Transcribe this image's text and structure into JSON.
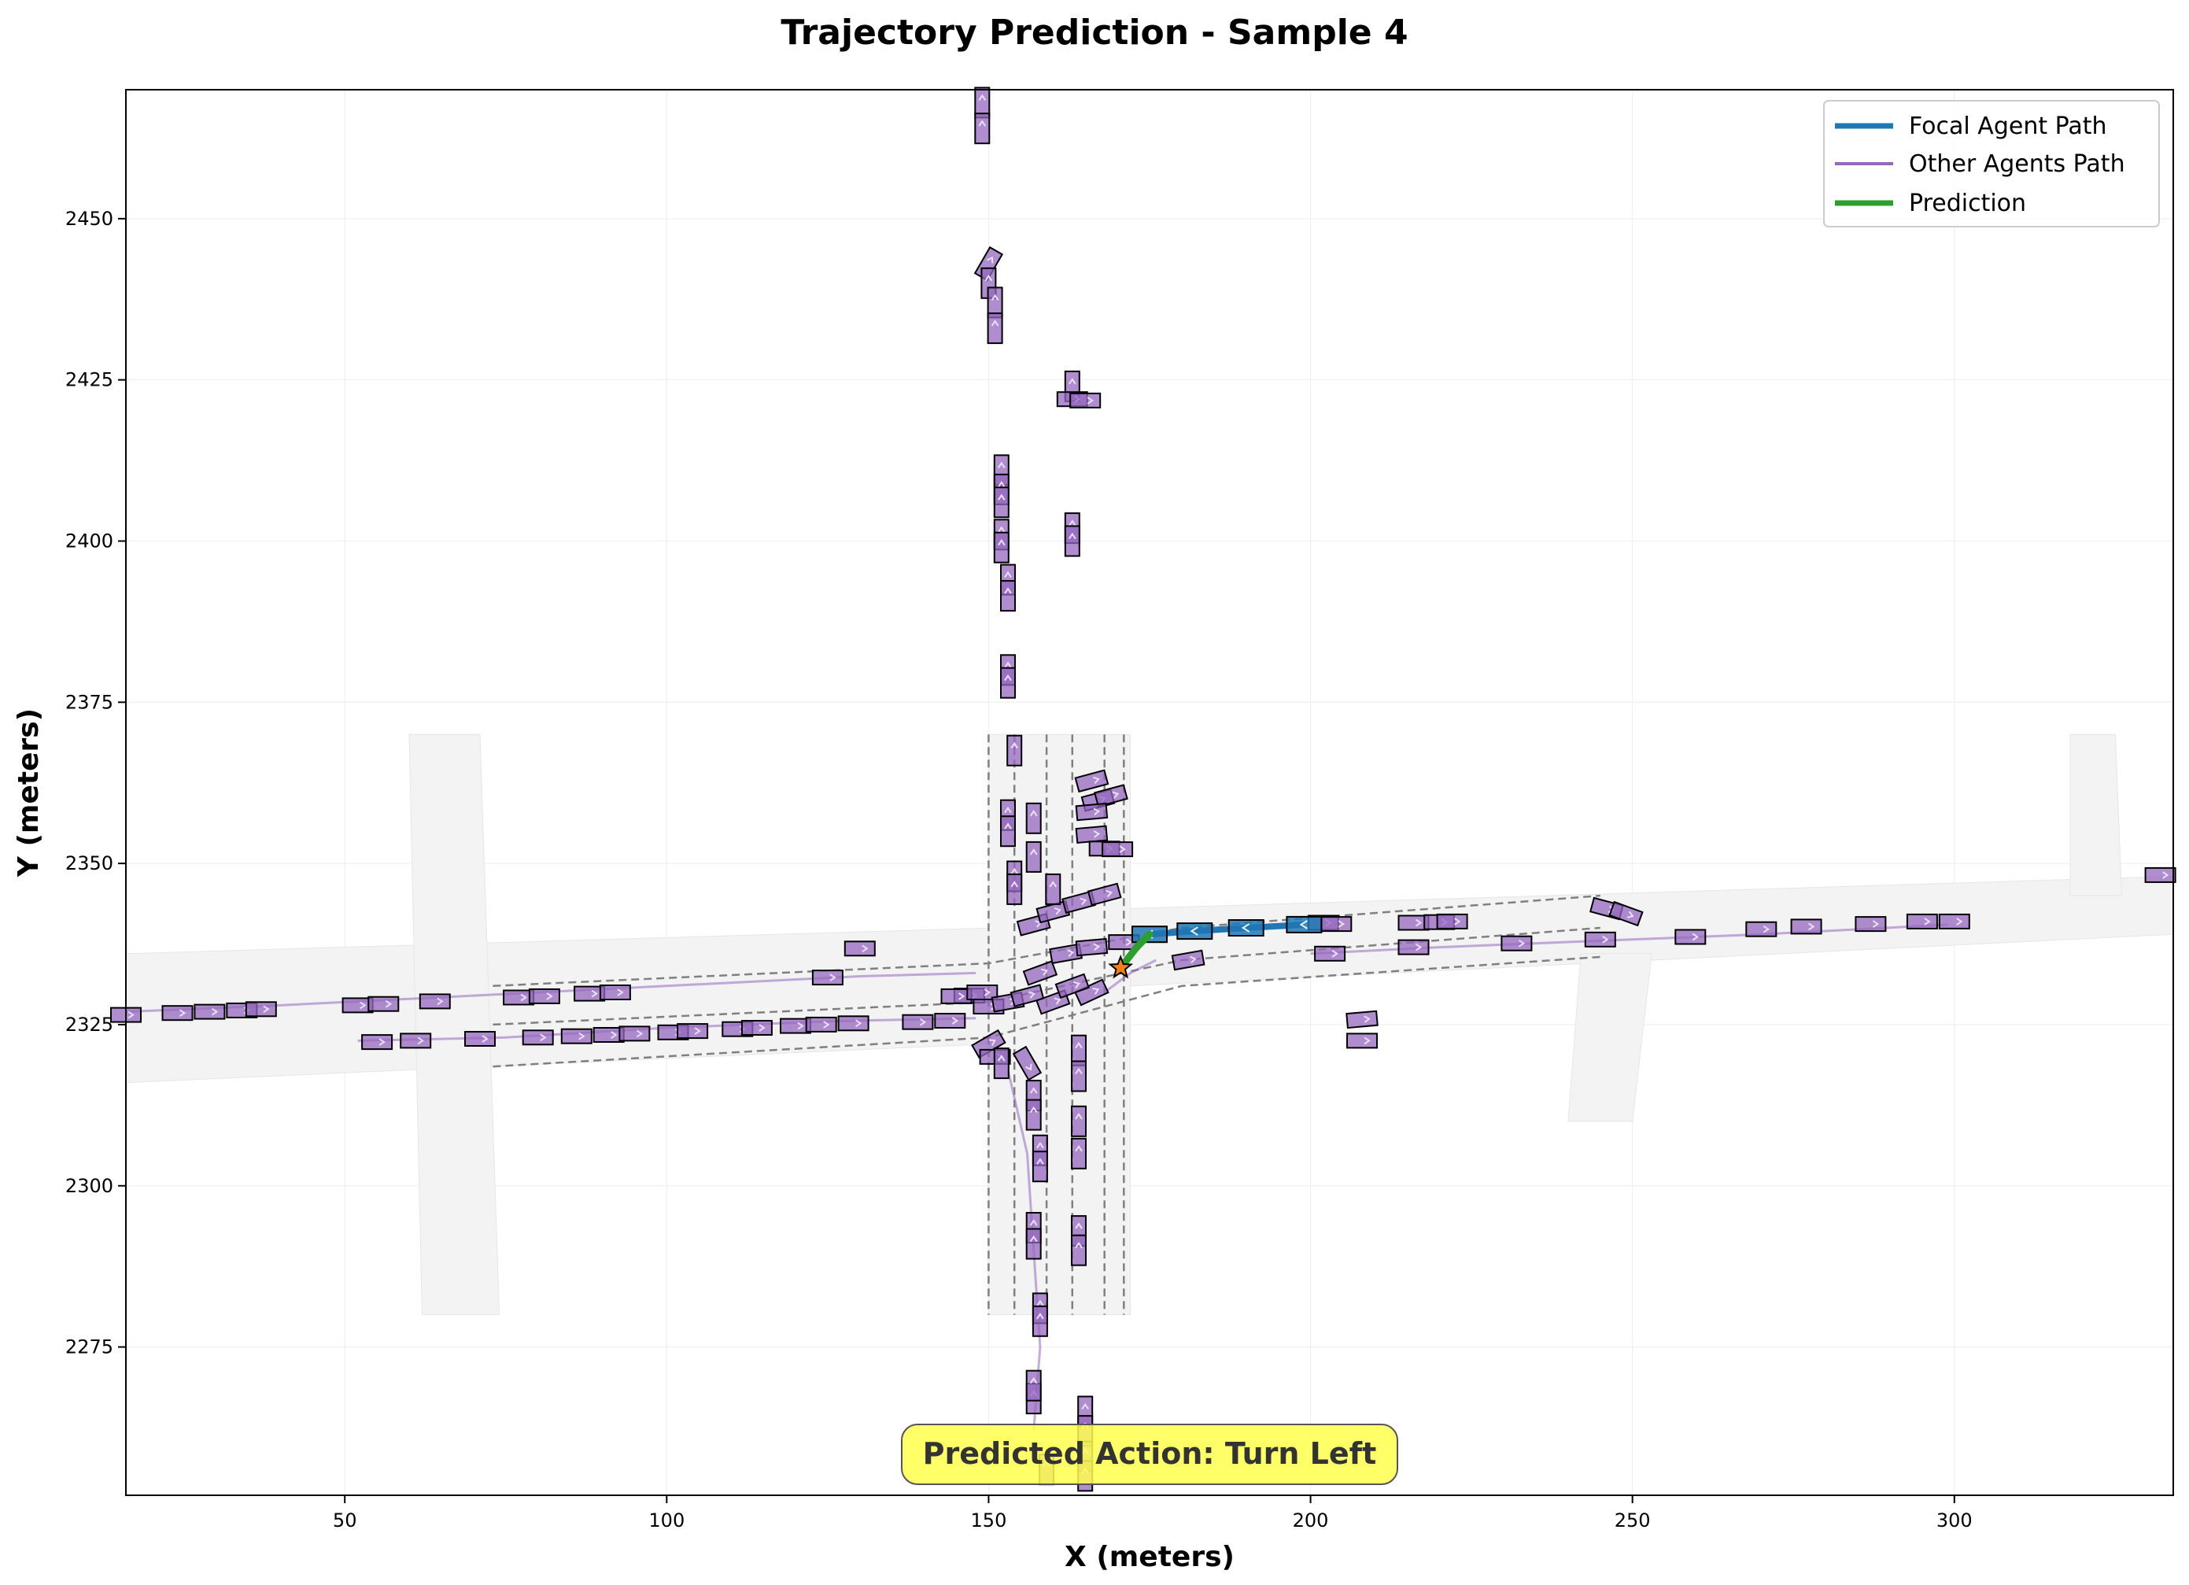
{
  "chart_data": {
    "type": "scatter",
    "title": "Trajectory Prediction - Sample 4",
    "xlabel": "X (meters)",
    "ylabel": "Y (meters)",
    "xlim": [
      16,
      334
    ],
    "ylim": [
      2252,
      2470
    ],
    "xticks": [
      50,
      100,
      150,
      200,
      250,
      300
    ],
    "yticks": [
      2275,
      2300,
      2325,
      2350,
      2375,
      2400,
      2425,
      2450
    ],
    "grid": true,
    "legend_position": "top-right",
    "legend": [
      {
        "label": "Focal Agent Path",
        "color": "#1f77b4"
      },
      {
        "label": "Other Agents Path",
        "color": "#9467bd"
      },
      {
        "label": "Prediction",
        "color": "#2ca02c"
      }
    ],
    "annotation": "Predicted Action: Turn Left",
    "focal_agent": {
      "path": [
        [
          199,
          2340.5
        ],
        [
          190,
          2340
        ],
        [
          182,
          2339.5
        ],
        [
          175,
          2339
        ]
      ],
      "current_position": [
        170.5,
        2333.8
      ]
    },
    "prediction": {
      "path": [
        [
          170.5,
          2333.8
        ],
        [
          173,
          2337
        ],
        [
          175,
          2339
        ]
      ]
    },
    "other_agent_paths": [
      [
        [
          16,
          2327
        ],
        [
          40,
          2328
        ],
        [
          60,
          2329
        ],
        [
          80,
          2330
        ],
        [
          100,
          2331
        ],
        [
          130,
          2332.5
        ],
        [
          148,
          2333
        ]
      ],
      [
        [
          52,
          2322.5
        ],
        [
          75,
          2323
        ],
        [
          100,
          2324.5
        ],
        [
          125,
          2325.5
        ],
        [
          148,
          2326
        ]
      ],
      [
        [
          200,
          2336
        ],
        [
          220,
          2337
        ],
        [
          245,
          2338
        ],
        [
          270,
          2339
        ],
        [
          299,
          2340.5
        ]
      ],
      [
        [
          157,
          2262
        ],
        [
          158,
          2275
        ],
        [
          157,
          2290
        ],
        [
          156,
          2305
        ],
        [
          153,
          2318
        ]
      ],
      [
        [
          168,
          2330
        ],
        [
          172,
          2333
        ],
        [
          176,
          2335
        ]
      ]
    ],
    "other_agents": [
      [
        16,
        2326.5,
        0
      ],
      [
        24,
        2326.8,
        0
      ],
      [
        29,
        2327,
        0
      ],
      [
        34,
        2327.2,
        0
      ],
      [
        37,
        2327.4,
        0
      ],
      [
        52,
        2328,
        0
      ],
      [
        56,
        2328.2,
        0
      ],
      [
        64,
        2328.6,
        0
      ],
      [
        77,
        2329.2,
        0
      ],
      [
        81,
        2329.4,
        0
      ],
      [
        88,
        2329.8,
        0
      ],
      [
        92,
        2330,
        0
      ],
      [
        125,
        2332.3,
        0
      ],
      [
        130,
        2336.8,
        0
      ],
      [
        55,
        2322.3,
        0
      ],
      [
        61,
        2322.5,
        0
      ],
      [
        71,
        2322.8,
        0
      ],
      [
        80,
        2323,
        0
      ],
      [
        86,
        2323.2,
        0
      ],
      [
        91,
        2323.4,
        0
      ],
      [
        95,
        2323.6,
        0
      ],
      [
        101,
        2323.8,
        0
      ],
      [
        104,
        2324,
        0
      ],
      [
        111,
        2324.3,
        0
      ],
      [
        114,
        2324.5,
        0
      ],
      [
        120,
        2324.8,
        0
      ],
      [
        124,
        2325,
        0
      ],
      [
        129,
        2325.2,
        0
      ],
      [
        139,
        2325.4,
        0
      ],
      [
        144,
        2325.6,
        0
      ],
      [
        147,
        2329.5,
        0
      ],
      [
        145,
        2329.4,
        0
      ],
      [
        149,
        2330,
        0
      ],
      [
        150,
        2327.8,
        0
      ],
      [
        153,
        2328.5,
        10
      ],
      [
        156,
        2329.5,
        15
      ],
      [
        157,
        2340.5,
        15
      ],
      [
        160,
        2342.5,
        15
      ],
      [
        164,
        2344,
        15
      ],
      [
        168,
        2345.2,
        15
      ],
      [
        158,
        2333,
        20
      ],
      [
        162,
        2336,
        10
      ],
      [
        166,
        2337,
        5
      ],
      [
        171,
        2337.8,
        0
      ],
      [
        166,
        2330,
        25
      ],
      [
        160,
        2328.5,
        20
      ],
      [
        163,
        2331,
        20
      ],
      [
        181,
        2335,
        10
      ],
      [
        208,
        2325.8,
        5
      ],
      [
        208,
        2322.5,
        0
      ],
      [
        202,
        2340.8,
        0
      ],
      [
        204,
        2340.6,
        0
      ],
      [
        216,
        2340.8,
        0
      ],
      [
        220,
        2340.9,
        0
      ],
      [
        222,
        2341,
        0
      ],
      [
        246,
        2343,
        -15
      ],
      [
        249,
        2342.2,
        -20
      ],
      [
        203,
        2336,
        0
      ],
      [
        216,
        2337,
        0
      ],
      [
        232,
        2337.6,
        0
      ],
      [
        245,
        2338.2,
        0
      ],
      [
        259,
        2338.6,
        0
      ],
      [
        270,
        2339.8,
        0
      ],
      [
        277,
        2340.2,
        0
      ],
      [
        287,
        2340.6,
        0
      ],
      [
        295,
        2341,
        0
      ],
      [
        300,
        2341,
        0
      ],
      [
        332,
        2348.2,
        0
      ],
      [
        149,
        2468,
        90
      ],
      [
        149,
        2464,
        90
      ],
      [
        150,
        2443,
        60
      ],
      [
        150,
        2440,
        90
      ],
      [
        151,
        2437,
        90
      ],
      [
        151,
        2433,
        90
      ],
      [
        163,
        2424,
        90
      ],
      [
        163,
        2422,
        0
      ],
      [
        165,
        2421.8,
        0
      ],
      [
        152,
        2411,
        90
      ],
      [
        152,
        2408,
        90
      ],
      [
        152,
        2406,
        90
      ],
      [
        152,
        2401,
        90
      ],
      [
        152,
        2399,
        90
      ],
      [
        163,
        2402,
        90
      ],
      [
        163,
        2400,
        90
      ],
      [
        153,
        2394,
        90
      ],
      [
        153,
        2391.5,
        90
      ],
      [
        153,
        2380,
        90
      ],
      [
        153,
        2378,
        90
      ],
      [
        154,
        2367.5,
        90
      ],
      [
        153,
        2357.5,
        90
      ],
      [
        153,
        2355,
        90
      ],
      [
        157,
        2357,
        90
      ],
      [
        157,
        2351,
        90
      ],
      [
        154,
        2348,
        90
      ],
      [
        154,
        2346,
        90
      ],
      [
        160,
        2346,
        90
      ],
      [
        166,
        2362.8,
        15
      ],
      [
        167,
        2359.8,
        15
      ],
      [
        169,
        2360.5,
        15
      ],
      [
        166,
        2358,
        5
      ],
      [
        166,
        2354.5,
        5
      ],
      [
        168,
        2352.3,
        0
      ],
      [
        170,
        2352.2,
        0
      ],
      [
        150,
        2322,
        30
      ],
      [
        151,
        2320,
        0
      ],
      [
        152,
        2319,
        90
      ],
      [
        156,
        2319,
        -60
      ],
      [
        157,
        2314,
        90
      ],
      [
        157,
        2311,
        90
      ],
      [
        158,
        2305.5,
        90
      ],
      [
        158,
        2303,
        90
      ],
      [
        157,
        2293.5,
        90
      ],
      [
        157,
        2291,
        90
      ],
      [
        158,
        2281,
        90
      ],
      [
        158,
        2279,
        90
      ],
      [
        157,
        2267,
        90
      ],
      [
        157,
        2269,
        90
      ],
      [
        159,
        2256,
        90
      ],
      [
        164,
        2321,
        90
      ],
      [
        164,
        2317,
        90
      ],
      [
        164,
        2310,
        90
      ],
      [
        164,
        2305,
        90
      ],
      [
        164,
        2293,
        90
      ],
      [
        164,
        2290,
        90
      ],
      [
        165,
        2265,
        90
      ],
      [
        165,
        2262,
        90
      ],
      [
        165,
        2258,
        90
      ],
      [
        165,
        2255,
        90
      ]
    ],
    "lane_lines": [
      [
        [
          73,
          2331
        ],
        [
          150,
          2334.5
        ],
        [
          180,
          2340
        ],
        [
          245,
          2345
        ]
      ],
      [
        [
          73,
          2325
        ],
        [
          150,
          2328.5
        ],
        [
          180,
          2335
        ],
        [
          245,
          2340
        ]
      ],
      [
        [
          73,
          2318.5
        ],
        [
          150,
          2323
        ],
        [
          180,
          2331
        ],
        [
          245,
          2335.5
        ]
      ],
      [
        [
          154,
          2370
        ],
        [
          154,
          2280
        ]
      ],
      [
        [
          159,
          2370
        ],
        [
          159,
          2280
        ]
      ],
      [
        [
          163,
          2370
        ],
        [
          163,
          2280
        ]
      ],
      [
        [
          168,
          2370
        ],
        [
          168,
          2280
        ]
      ],
      [
        [
          150,
          2370
        ],
        [
          150,
          2280
        ]
      ],
      [
        [
          171,
          2370
        ],
        [
          171,
          2280
        ]
      ]
    ],
    "road_polygons": [
      [
        [
          16,
          2316
        ],
        [
          150,
          2322
        ],
        [
          151,
          2340
        ],
        [
          16,
          2336
        ]
      ],
      [
        [
          172,
          2331
        ],
        [
          334,
          2339
        ],
        [
          334,
          2348
        ],
        [
          172,
          2343
        ]
      ],
      [
        [
          150,
          2370
        ],
        [
          172,
          2370
        ],
        [
          172,
          2280
        ],
        [
          150,
          2280
        ]
      ],
      [
        [
          60,
          2370
        ],
        [
          71,
          2370
        ],
        [
          74,
          2280
        ],
        [
          62,
          2280
        ]
      ],
      [
        [
          242,
          2336
        ],
        [
          253,
          2336
        ],
        [
          250,
          2310
        ],
        [
          240,
          2310
        ]
      ],
      [
        [
          318,
          2370
        ],
        [
          325,
          2370
        ],
        [
          326,
          2345
        ],
        [
          318,
          2345
        ]
      ]
    ]
  }
}
